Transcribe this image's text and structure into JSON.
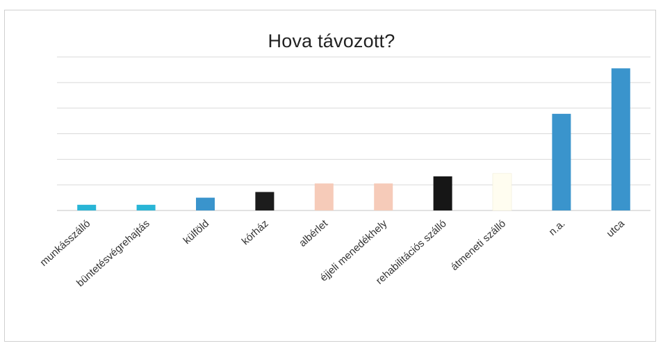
{
  "chart_data": {
    "type": "bar",
    "title": "Hova távozott?",
    "xlabel": "",
    "ylabel": "",
    "categories": [
      "munkásszálló",
      "büntetésvégrehajtás",
      "külföld",
      "kórház",
      "albérlet",
      "éjjeli menedékhely",
      "rehabilitációs szálló",
      "átmeneti szálló",
      "n.a.",
      "utca"
    ],
    "values": [
      0.2,
      0.2,
      0.45,
      0.65,
      0.95,
      0.95,
      1.2,
      1.3,
      3.4,
      5.0
    ],
    "colors": [
      "#29b5d6",
      "#29b5d6",
      "#3a94cc",
      "#1c1c1c",
      "#f6cbb9",
      "#f6cbb9",
      "#161616",
      "#fffdf0",
      "#3a94cc",
      "#3a94cc"
    ],
    "ylim": [
      0,
      5.4
    ],
    "y_ticks_shown": false,
    "grid": true,
    "legend": "none"
  }
}
